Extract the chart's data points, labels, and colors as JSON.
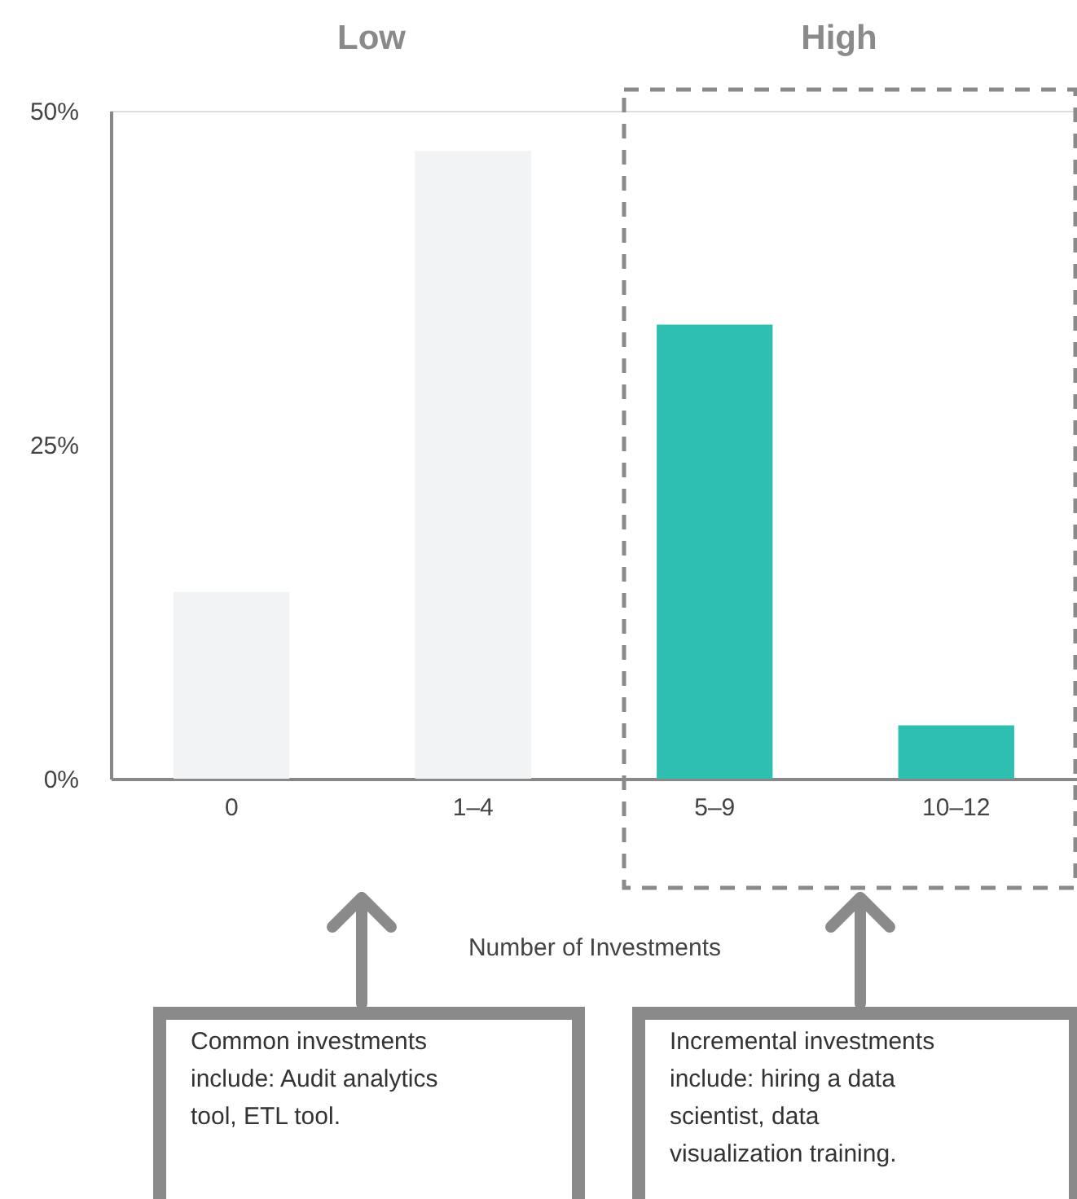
{
  "chart_data": {
    "type": "bar",
    "xlabel": "Number of Investments",
    "categories": [
      "0",
      "1–4",
      "5–9",
      "10–12"
    ],
    "values": [
      14,
      47,
      34,
      4
    ],
    "colors": [
      "#f2f3f5",
      "#f2f3f5",
      "#2fbfb0",
      "#2fbfb0"
    ],
    "ylim": [
      0,
      50
    ],
    "yticks": [
      {
        "value": 0,
        "label": "0%"
      },
      {
        "value": 25,
        "label": "25%"
      },
      {
        "value": 50,
        "label": "50%"
      }
    ],
    "grid": false,
    "annotations": [
      "Low",
      "High",
      "Common investments include: Audit analytics tool, ETL tool.",
      "Incremental investments include: hiring a data scientist, data visualization training."
    ]
  }
}
